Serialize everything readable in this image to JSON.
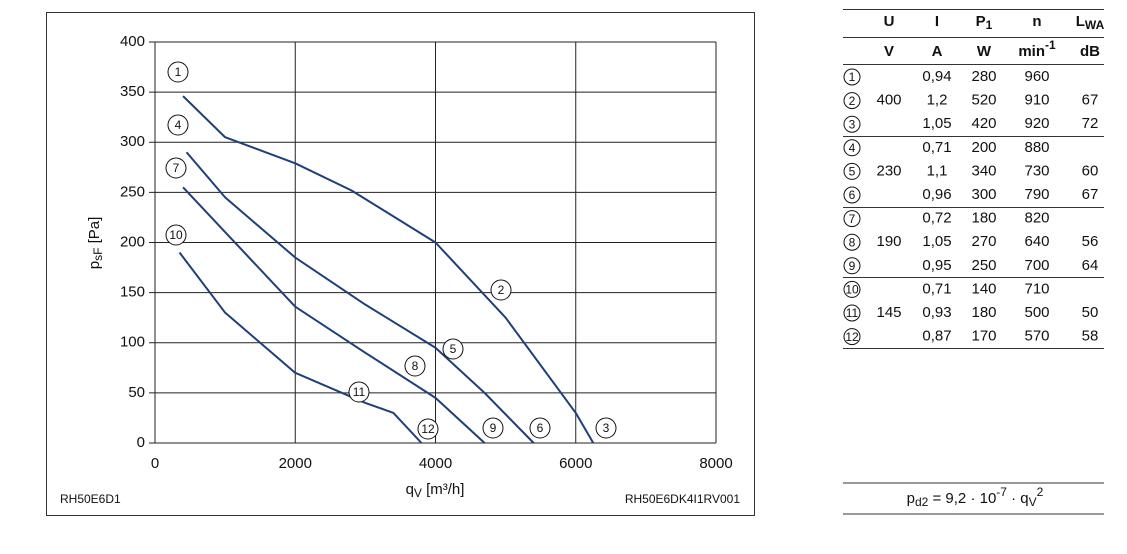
{
  "chart_data": {
    "type": "line",
    "x_label": {
      "symbol": "q",
      "sub": "V",
      "unit": " [m³/h]"
    },
    "y_label": {
      "symbol": "p",
      "sub": "sF",
      "unit": " [Pa]"
    },
    "xlim": [
      0,
      8000
    ],
    "xticks": [
      0,
      2000,
      4000,
      6000,
      8000
    ],
    "ylim": [
      0,
      400
    ],
    "yticks": [
      0,
      50,
      100,
      150,
      200,
      250,
      300,
      350,
      400
    ],
    "grid": true,
    "series": [
      {
        "color": "#1f3f7a",
        "x": [
          400,
          1000,
          2000,
          2800,
          4000,
          5000,
          6000,
          6250
        ],
        "values": [
          346,
          305,
          279,
          252,
          200,
          125,
          30,
          0
        ]
      },
      {
        "color": "#1f3f7a",
        "x": [
          450,
          1000,
          2000,
          3000,
          4000,
          4700,
          5400
        ],
        "values": [
          290,
          245,
          185,
          138,
          95,
          50,
          0
        ]
      },
      {
        "color": "#1f3f7a",
        "x": [
          400,
          2000,
          3000,
          4000,
          4700
        ],
        "values": [
          255,
          136,
          90,
          45,
          0
        ]
      },
      {
        "color": "#1f3f7a",
        "x": [
          350,
          1000,
          2000,
          3000,
          3400,
          3800
        ],
        "values": [
          190,
          130,
          70,
          40,
          30,
          0
        ]
      }
    ],
    "annotations": [
      "1",
      "2",
      "3",
      "4",
      "5",
      "6",
      "7",
      "8",
      "9",
      "10",
      "11",
      "12"
    ],
    "footer_left": "RH50E6D1",
    "footer_right": "RH50E6DK4I1RV001"
  },
  "table": {
    "header": [
      {
        "main": "U"
      },
      {
        "main": "I"
      },
      {
        "main": "P",
        "sub": "1"
      },
      {
        "main": "n"
      },
      {
        "main": "L",
        "sub": "WA"
      }
    ],
    "units": [
      {
        "main": "V"
      },
      {
        "main": "A"
      },
      {
        "main": "W"
      },
      {
        "main": "min",
        "sup": "-1"
      },
      {
        "main": "dB"
      }
    ],
    "groups": [
      {
        "U": "400",
        "rows": [
          [
            "1",
            "0,94",
            "280",
            "960",
            null
          ],
          [
            "2",
            "1,2",
            "520",
            "910",
            "67"
          ],
          [
            "3",
            "1,05",
            "420",
            "920",
            "72"
          ]
        ]
      },
      {
        "U": "230",
        "rows": [
          [
            "4",
            "0,71",
            "200",
            "880",
            null
          ],
          [
            "5",
            "1,1",
            "340",
            "730",
            "60"
          ],
          [
            "6",
            "0,96",
            "300",
            "790",
            "67"
          ]
        ]
      },
      {
        "U": "190",
        "rows": [
          [
            "7",
            "0,72",
            "180",
            "820",
            null
          ],
          [
            "8",
            "1,05",
            "270",
            "640",
            "56"
          ],
          [
            "9",
            "0,95",
            "250",
            "700",
            "64"
          ]
        ]
      },
      {
        "U": "145",
        "rows": [
          [
            "10",
            "0,71",
            "140",
            "710",
            null
          ],
          [
            "11",
            "0,93",
            "180",
            "500",
            "50"
          ],
          [
            "12",
            "0,87",
            "170",
            "570",
            "58"
          ]
        ]
      }
    ]
  },
  "formula": {
    "p": "p",
    "p_sub": "d2",
    "mid": " = 9,2 · 10",
    "exp": "-7",
    "dot": " · q",
    "q_sub": "V",
    "q_sup": "2"
  }
}
